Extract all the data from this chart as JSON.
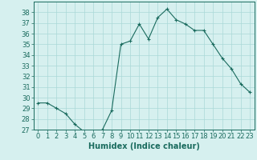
{
  "x": [
    0,
    1,
    2,
    3,
    4,
    5,
    6,
    7,
    8,
    9,
    10,
    11,
    12,
    13,
    14,
    15,
    16,
    17,
    18,
    19,
    20,
    21,
    22,
    23
  ],
  "y": [
    29.5,
    29.5,
    29.0,
    28.5,
    27.5,
    26.8,
    26.7,
    27.0,
    28.8,
    35.0,
    35.3,
    36.9,
    35.5,
    37.5,
    38.3,
    37.3,
    36.9,
    36.3,
    36.3,
    35.0,
    33.7,
    32.7,
    31.3,
    30.5
  ],
  "line_color": "#1a6b5e",
  "marker": "+",
  "marker_color": "#1a6b5e",
  "bg_color": "#d6f0ef",
  "grid_color": "#aad8d8",
  "xlabel": "Humidex (Indice chaleur)",
  "xlim": [
    -0.5,
    23.5
  ],
  "ylim": [
    27,
    39
  ],
  "yticks": [
    27,
    28,
    29,
    30,
    31,
    32,
    33,
    34,
    35,
    36,
    37,
    38
  ],
  "xticks": [
    0,
    1,
    2,
    3,
    4,
    5,
    6,
    7,
    8,
    9,
    10,
    11,
    12,
    13,
    14,
    15,
    16,
    17,
    18,
    19,
    20,
    21,
    22,
    23
  ],
  "tick_color": "#1a6b5e",
  "label_color": "#1a6b5e",
  "axis_color": "#1a6b5e",
  "xlabel_fontsize": 7.0,
  "tick_fontsize": 6.0
}
